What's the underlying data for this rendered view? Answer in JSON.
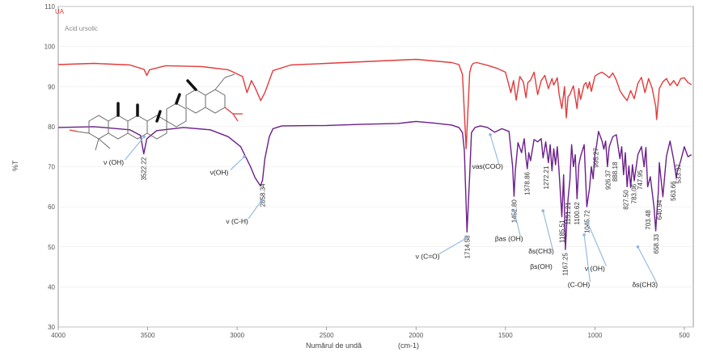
{
  "chart_data": {
    "type": "line",
    "xlabel": "Numărul de undă",
    "xunit": "(cm-1)",
    "ylabel": "%T",
    "xlim": [
      4000,
      450
    ],
    "ylim": [
      30,
      110
    ],
    "x_ticks": [
      "4000",
      "3500",
      "3000",
      "2500",
      "2000",
      "1500",
      "1000",
      "500"
    ],
    "y_ticks": [
      "30",
      "40",
      "50",
      "60",
      "70",
      "80",
      "90",
      "100",
      "110"
    ],
    "legend": {
      "top": "UA",
      "bottom": "Acid ursolic"
    },
    "colors": {
      "top": "#e23b3b",
      "bottom": "#6b1f8a",
      "annotation": "#8fb7dd"
    },
    "series": [
      {
        "name": "UA",
        "color": "#e23b3b",
        "x": [
          4000,
          3800,
          3600,
          3520,
          3505,
          3490,
          3400,
          3200,
          3050,
          2970,
          2945,
          2920,
          2900,
          2868,
          2845,
          2800,
          2700,
          2500,
          2300,
          2100,
          2000,
          1900,
          1800,
          1760,
          1740,
          1720,
          1700,
          1690,
          1680,
          1660,
          1600,
          1550,
          1500,
          1470,
          1455,
          1440,
          1420,
          1400,
          1385,
          1375,
          1360,
          1340,
          1320,
          1300,
          1280,
          1260,
          1240,
          1230,
          1210,
          1200,
          1185,
          1170,
          1160,
          1150,
          1140,
          1120,
          1100,
          1090,
          1080,
          1060,
          1050,
          1040,
          1030,
          1020,
          1000,
          980,
          960,
          940,
          920,
          900,
          880,
          860,
          840,
          820,
          800,
          780,
          760,
          740,
          720,
          700,
          680,
          660,
          655,
          640,
          620,
          600,
          580,
          560,
          540,
          520,
          500,
          480,
          460
        ],
        "y": [
          95.5,
          95.8,
          95.4,
          94.3,
          92.8,
          94.2,
          95.2,
          95.0,
          94.2,
          92.5,
          88.5,
          91.5,
          89.8,
          86.5,
          88.5,
          94.0,
          95.4,
          95.8,
          96.2,
          96.6,
          96.8,
          96.4,
          96.0,
          95.5,
          93.0,
          74.5,
          93.5,
          95.2,
          95.8,
          96.0,
          95.3,
          94.6,
          93.6,
          88.5,
          91.5,
          86.6,
          92.5,
          91.2,
          87.2,
          91.0,
          91.6,
          93.6,
          88.0,
          91.5,
          92.8,
          89.5,
          92.0,
          90.4,
          92.2,
          88.0,
          84.5,
          90.0,
          82.2,
          87.5,
          88.0,
          90.2,
          84.5,
          89.5,
          86.8,
          90.5,
          91.0,
          89.5,
          91.2,
          88.8,
          92.6,
          93.2,
          93.6,
          93.0,
          92.2,
          93.4,
          91.6,
          89.0,
          87.6,
          86.5,
          89.0,
          87.0,
          90.8,
          92.3,
          88.5,
          92.0,
          89.6,
          85.0,
          81.8,
          89.5,
          91.2,
          92.0,
          90.3,
          91.5,
          90.2,
          92.0,
          92.2,
          91.0,
          90.5
        ]
      },
      {
        "name": "Acid ursolic",
        "color": "#6b1f8a",
        "x": [
          4000,
          3800,
          3600,
          3540,
          3522,
          3505,
          3450,
          3300,
          3150,
          3050,
          2980,
          2945,
          2925,
          2900,
          2870,
          2858,
          2845,
          2820,
          2800,
          2750,
          2500,
          2300,
          2100,
          2000,
          1900,
          1800,
          1760,
          1740,
          1730,
          1715,
          1700,
          1690,
          1670,
          1640,
          1600,
          1560,
          1520,
          1480,
          1460,
          1452,
          1445,
          1430,
          1410,
          1395,
          1385,
          1378,
          1370,
          1360,
          1340,
          1320,
          1300,
          1290,
          1275,
          1260,
          1250,
          1240,
          1230,
          1220,
          1210,
          1200,
          1185,
          1175,
          1165,
          1150,
          1140,
          1130,
          1120,
          1110,
          1100,
          1090,
          1080,
          1060,
          1045,
          1030,
          1020,
          1010,
          1000,
          990,
          980,
          960,
          950,
          940,
          930,
          920,
          900,
          880,
          870,
          860,
          850,
          840,
          830,
          820,
          810,
          800,
          790,
          780,
          760,
          740,
          725,
          715,
          705,
          690,
          670,
          660,
          655,
          645,
          640,
          620,
          600,
          580,
          560,
          545,
          540,
          520,
          500,
          480,
          460
        ],
        "y": [
          79.8,
          80.0,
          79.2,
          77.8,
          73.2,
          77.0,
          79.0,
          79.8,
          79.2,
          77.5,
          75.0,
          71.8,
          70.0,
          67.3,
          65.2,
          66.6,
          72.0,
          77.5,
          79.5,
          80.2,
          80.3,
          80.6,
          80.8,
          81.3,
          80.9,
          80.4,
          79.8,
          78.5,
          74.0,
          53.7,
          68.0,
          78.5,
          79.8,
          80.2,
          79.8,
          78.6,
          79.5,
          78.8,
          70.0,
          62.6,
          69.0,
          76.0,
          73.5,
          77.0,
          72.0,
          69.5,
          73.5,
          71.5,
          76.8,
          76.2,
          77.0,
          72.2,
          76.2,
          71.0,
          75.5,
          69.0,
          74.5,
          70.5,
          75.0,
          68.5,
          57.5,
          68.0,
          49.3,
          62.0,
          66.5,
          75.5,
          70.0,
          73.0,
          62.0,
          70.5,
          72.6,
          75.5,
          60.0,
          64.6,
          70.0,
          67.0,
          73.0,
          75.5,
          78.8,
          76.4,
          74.4,
          76.4,
          70.0,
          75.0,
          77.5,
          78.0,
          75.0,
          72.0,
          75.0,
          68.0,
          73.5,
          65.0,
          70.2,
          64.8,
          70.5,
          66.5,
          73.0,
          75.0,
          70.0,
          74.8,
          65.0,
          67.5,
          60.0,
          54.0,
          57.8,
          64.0,
          71.0,
          62.5,
          72.6,
          76.4,
          71.8,
          67.2,
          68.7,
          71.5,
          75.0,
          72.5,
          73.0
        ]
      }
    ],
    "peak_labels": [
      {
        "text": "3522.22",
        "x": 3522,
        "y": 73.2
      },
      {
        "text": "2858.34",
        "x": 2858,
        "y": 66.6
      },
      {
        "text": "1714.58",
        "x": 1714.58,
        "y": 53.7
      },
      {
        "text": "1452.80",
        "x": 1452.8,
        "y": 62.6
      },
      {
        "text": "1378.86",
        "x": 1378.86,
        "y": 69.5
      },
      {
        "text": "1272.21",
        "x": 1272,
        "y": 71.0
      },
      {
        "text": "1185.51",
        "x": 1185.5,
        "y": 57.5
      },
      {
        "text": "1167.25",
        "x": 1167.25,
        "y": 49.3
      },
      {
        "text": "1151.21",
        "x": 1151,
        "y": 62.0
      },
      {
        "text": "1100.62",
        "x": 1100.6,
        "y": 62.0
      },
      {
        "text": "1045.72",
        "x": 1045.7,
        "y": 60.0
      },
      {
        "text": "995.27",
        "x": 995.3,
        "y": 75.5
      },
      {
        "text": "926.37",
        "x": 926.4,
        "y": 70.0
      },
      {
        "text": "888.18",
        "x": 888.2,
        "y": 72.0
      },
      {
        "text": "827.50",
        "x": 827.5,
        "y": 65.0
      },
      {
        "text": "783.06",
        "x": 783,
        "y": 66.5
      },
      {
        "text": "747.95",
        "x": 748,
        "y": 70.0
      },
      {
        "text": "703.48",
        "x": 703.5,
        "y": 60.0
      },
      {
        "text": "658.33",
        "x": 658.3,
        "y": 54.0
      },
      {
        "text": "640.94",
        "x": 640.9,
        "y": 62.5
      },
      {
        "text": "563.66",
        "x": 563.7,
        "y": 67.2
      },
      {
        "text": "533.37",
        "x": 533.4,
        "y": 71.5
      }
    ],
    "annotations": [
      {
        "label": "ν (OH)",
        "x": 3690,
        "y": 70.5,
        "arrow_to": [
          3520,
          77.5
        ]
      },
      {
        "label": "ν(OH)",
        "x": 3100,
        "y": 68.0,
        "arrow_to": [
          2960,
          72.5
        ]
      },
      {
        "label": "ν (C-H)",
        "x": 3000,
        "y": 55.8,
        "arrow_to": [
          2865,
          61.5
        ]
      },
      {
        "label": "ν (C=O)",
        "x": 1935,
        "y": 47.0,
        "arrow_to": [
          1725,
          52.0
        ]
      },
      {
        "label": "νas(COO)",
        "x": 1600,
        "y": 69.5,
        "arrow_to": [
          1585,
          78.0
        ]
      },
      {
        "label": "βas (OH)",
        "x": 1480,
        "y": 51.5,
        "arrow_to": [
          1452,
          59.0
        ]
      },
      {
        "label": "δs(CH3)",
        "x": 1300,
        "y": 48.3,
        "arrow_to": [
          1290,
          59.0
        ]
      },
      {
        "label": "βs(OH)",
        "x": 1300,
        "y": 44.5
      },
      {
        "label": "ν (OH)",
        "x": 1000,
        "y": 44.0,
        "arrow_to": [
          1040,
          56.0
        ]
      },
      {
        "label": "(C-OH)",
        "x": 1090,
        "y": 40.0,
        "arrow_to": [
          1060,
          53.0
        ]
      },
      {
        "label": "δs(CH3)",
        "x": 720,
        "y": 40.0,
        "arrow_to": [
          760,
          50.0
        ]
      }
    ]
  }
}
